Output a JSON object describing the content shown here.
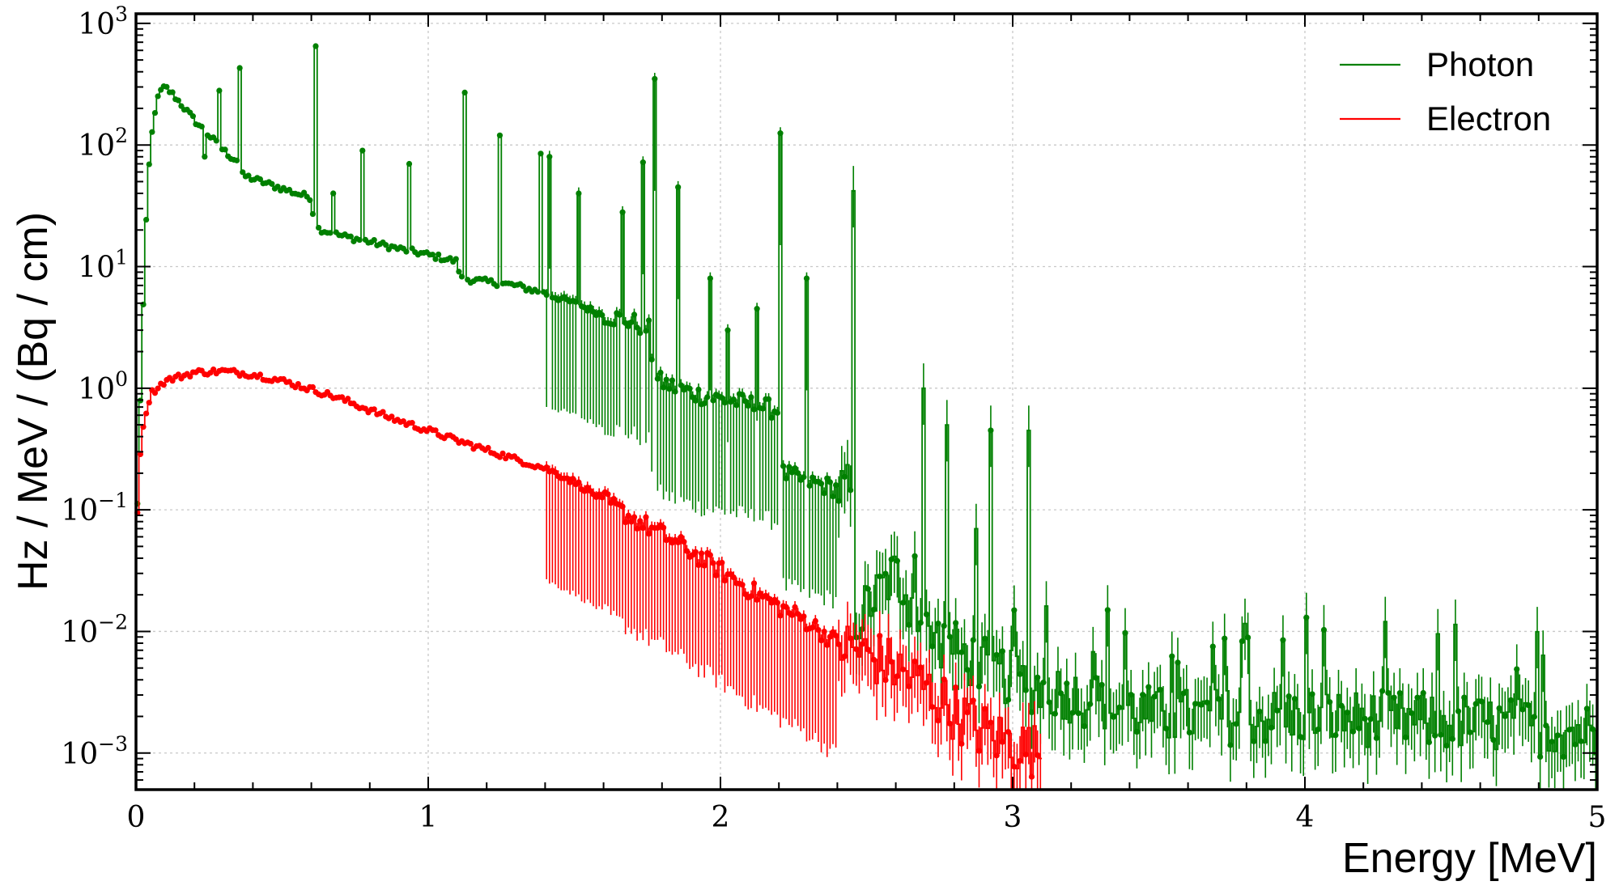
{
  "chart_data": {
    "type": "line",
    "xlabel": "Energy [MeV]",
    "ylabel": "Hz / MeV / (Bq / cm)",
    "xlim": [
      0,
      5
    ],
    "ylim": [
      0.0005,
      1200
    ],
    "y_scale": "log",
    "grid": true,
    "legend_position": "top-right",
    "x_ticks": [
      {
        "value": 0,
        "label": "0"
      },
      {
        "value": 1,
        "label": "1"
      },
      {
        "value": 2,
        "label": "2"
      },
      {
        "value": 3,
        "label": "3"
      },
      {
        "value": 4,
        "label": "4"
      },
      {
        "value": 5,
        "label": "5"
      }
    ],
    "y_ticks": [
      {
        "value": 0.001,
        "base": "10",
        "exp": "−3"
      },
      {
        "value": 0.01,
        "base": "10",
        "exp": "−2"
      },
      {
        "value": 0.1,
        "base": "10",
        "exp": "−1"
      },
      {
        "value": 1,
        "base": "10",
        "exp": "0"
      },
      {
        "value": 10,
        "base": "10",
        "exp": "1"
      },
      {
        "value": 100,
        "base": "10",
        "exp": "2"
      },
      {
        "value": 1000,
        "base": "10",
        "exp": "3"
      }
    ],
    "series": [
      {
        "name": "Photon",
        "color": "#008000",
        "continuum": [
          [
            0.005,
            0.11
          ],
          [
            0.02,
            2.2
          ],
          [
            0.04,
            50
          ],
          [
            0.06,
            170
          ],
          [
            0.08,
            270
          ],
          [
            0.1,
            300
          ],
          [
            0.13,
            255
          ],
          [
            0.17,
            195
          ],
          [
            0.21,
            150
          ],
          [
            0.25,
            120
          ],
          [
            0.29,
            95
          ],
          [
            0.33,
            78
          ],
          [
            0.35,
            75
          ],
          [
            0.36,
            57
          ],
          [
            0.45,
            48
          ],
          [
            0.55,
            40
          ],
          [
            0.6,
            37
          ],
          [
            0.61,
            21
          ],
          [
            0.7,
            18
          ],
          [
            0.8,
            16
          ],
          [
            0.9,
            14
          ],
          [
            1.0,
            12.5
          ],
          [
            1.1,
            11
          ],
          [
            1.11,
            8
          ],
          [
            1.3,
            7
          ],
          [
            1.4,
            6
          ],
          [
            1.5,
            5
          ],
          [
            1.6,
            4
          ],
          [
            1.7,
            3.5
          ],
          [
            1.76,
            3
          ],
          [
            1.77,
            1.2
          ],
          [
            1.85,
            1.0
          ],
          [
            1.95,
            0.85
          ],
          [
            2.05,
            0.78
          ],
          [
            2.15,
            0.7
          ],
          [
            2.2,
            0.65
          ],
          [
            2.21,
            0.2
          ],
          [
            2.3,
            0.17
          ],
          [
            2.4,
            0.15
          ],
          [
            2.45,
            0.14
          ],
          [
            2.46,
            0.012
          ],
          [
            2.6,
            0.03
          ],
          [
            2.7,
            0.01
          ],
          [
            2.85,
            0.006
          ],
          [
            3.0,
            0.004
          ],
          [
            3.2,
            0.003
          ],
          [
            3.5,
            0.002
          ],
          [
            4.0,
            0.002
          ],
          [
            4.5,
            0.0018
          ],
          [
            5.0,
            0.0015
          ]
        ],
        "peaks": [
          [
            0.24,
            80
          ],
          [
            0.29,
            280
          ],
          [
            0.35,
            430
          ],
          [
            0.61,
            650
          ],
          [
            0.67,
            40
          ],
          [
            0.77,
            90
          ],
          [
            0.94,
            70
          ],
          [
            1.12,
            270
          ],
          [
            1.24,
            120
          ],
          [
            1.38,
            85
          ],
          [
            1.41,
            80
          ],
          [
            1.51,
            40
          ],
          [
            1.66,
            28
          ],
          [
            1.73,
            72
          ],
          [
            1.77,
            350
          ],
          [
            1.85,
            45
          ],
          [
            1.96,
            8
          ],
          [
            2.02,
            3
          ],
          [
            2.12,
            4.5
          ],
          [
            2.2,
            125
          ],
          [
            2.29,
            8
          ],
          [
            2.45,
            42
          ],
          [
            2.69,
            1.0
          ],
          [
            2.77,
            0.5
          ],
          [
            2.92,
            0.45
          ],
          [
            3.05,
            0.45
          ],
          [
            2.87,
            0.07
          ],
          [
            3.32,
            0.015
          ],
          [
            4.0,
            0.013
          ]
        ]
      },
      {
        "name": "Electron",
        "color": "#ff0000",
        "continuum": [
          [
            0.005,
            0.1
          ],
          [
            0.02,
            0.45
          ],
          [
            0.05,
            0.9
          ],
          [
            0.1,
            1.15
          ],
          [
            0.2,
            1.35
          ],
          [
            0.3,
            1.38
          ],
          [
            0.4,
            1.3
          ],
          [
            0.5,
            1.15
          ],
          [
            0.6,
            0.98
          ],
          [
            0.7,
            0.82
          ],
          [
            0.8,
            0.66
          ],
          [
            0.9,
            0.54
          ],
          [
            1.0,
            0.45
          ],
          [
            1.1,
            0.37
          ],
          [
            1.2,
            0.31
          ],
          [
            1.3,
            0.26
          ],
          [
            1.4,
            0.22
          ],
          [
            1.5,
            0.17
          ],
          [
            1.6,
            0.12
          ],
          [
            1.7,
            0.085
          ],
          [
            1.8,
            0.063
          ],
          [
            1.9,
            0.045
          ],
          [
            2.0,
            0.032
          ],
          [
            2.1,
            0.022
          ],
          [
            2.2,
            0.016
          ],
          [
            2.3,
            0.012
          ],
          [
            2.4,
            0.008
          ],
          [
            2.5,
            0.0065
          ],
          [
            2.6,
            0.005
          ],
          [
            2.7,
            0.0035
          ],
          [
            2.8,
            0.0022
          ],
          [
            2.9,
            0.0015
          ],
          [
            3.0,
            0.0012
          ],
          [
            3.1,
            0.001
          ]
        ]
      }
    ]
  }
}
